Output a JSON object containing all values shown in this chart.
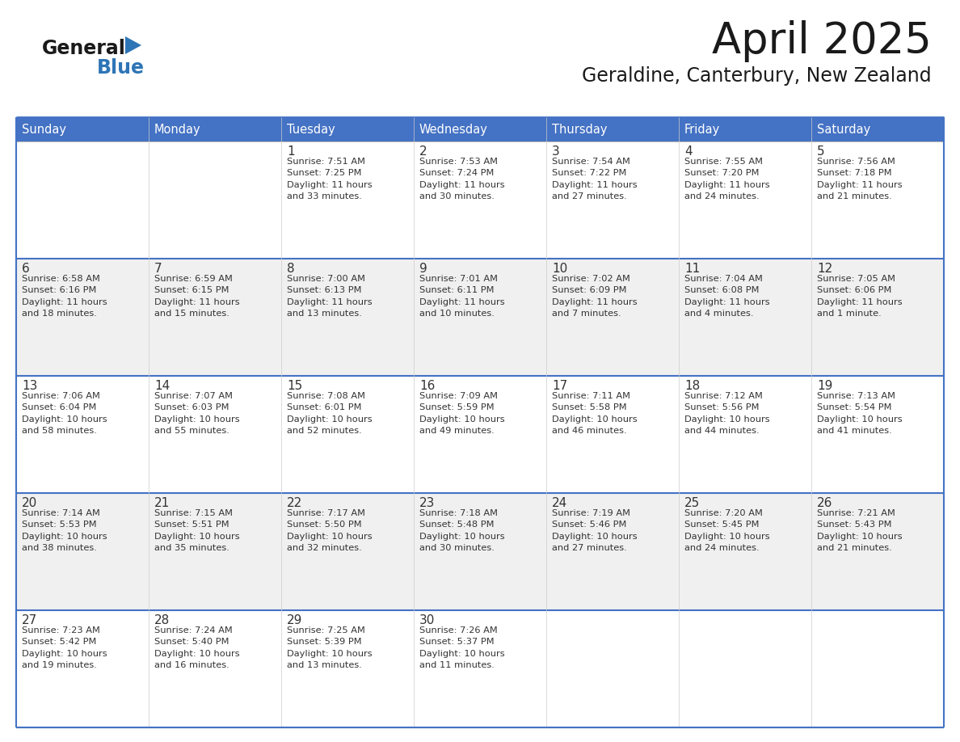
{
  "title": "April 2025",
  "subtitle": "Geraldine, Canterbury, New Zealand",
  "header_bg_color": "#4472C4",
  "header_text_color": "#FFFFFF",
  "border_color": "#4472C4",
  "row_sep_color": "#4472C4",
  "title_color": "#1a1a1a",
  "subtitle_color": "#1a1a1a",
  "text_color": "#333333",
  "days_of_week": [
    "Sunday",
    "Monday",
    "Tuesday",
    "Wednesday",
    "Thursday",
    "Friday",
    "Saturday"
  ],
  "logo_general_color": "#1a1a1a",
  "logo_blue_color": "#2E75B6",
  "logo_triangle_color": "#2E75B6",
  "row_bg_even": "#FFFFFF",
  "row_bg_odd": "#F0F0F0",
  "calendar_data": [
    [
      {
        "day": "",
        "info": ""
      },
      {
        "day": "",
        "info": ""
      },
      {
        "day": "1",
        "info": "Sunrise: 7:51 AM\nSunset: 7:25 PM\nDaylight: 11 hours\nand 33 minutes."
      },
      {
        "day": "2",
        "info": "Sunrise: 7:53 AM\nSunset: 7:24 PM\nDaylight: 11 hours\nand 30 minutes."
      },
      {
        "day": "3",
        "info": "Sunrise: 7:54 AM\nSunset: 7:22 PM\nDaylight: 11 hours\nand 27 minutes."
      },
      {
        "day": "4",
        "info": "Sunrise: 7:55 AM\nSunset: 7:20 PM\nDaylight: 11 hours\nand 24 minutes."
      },
      {
        "day": "5",
        "info": "Sunrise: 7:56 AM\nSunset: 7:18 PM\nDaylight: 11 hours\nand 21 minutes."
      }
    ],
    [
      {
        "day": "6",
        "info": "Sunrise: 6:58 AM\nSunset: 6:16 PM\nDaylight: 11 hours\nand 18 minutes."
      },
      {
        "day": "7",
        "info": "Sunrise: 6:59 AM\nSunset: 6:15 PM\nDaylight: 11 hours\nand 15 minutes."
      },
      {
        "day": "8",
        "info": "Sunrise: 7:00 AM\nSunset: 6:13 PM\nDaylight: 11 hours\nand 13 minutes."
      },
      {
        "day": "9",
        "info": "Sunrise: 7:01 AM\nSunset: 6:11 PM\nDaylight: 11 hours\nand 10 minutes."
      },
      {
        "day": "10",
        "info": "Sunrise: 7:02 AM\nSunset: 6:09 PM\nDaylight: 11 hours\nand 7 minutes."
      },
      {
        "day": "11",
        "info": "Sunrise: 7:04 AM\nSunset: 6:08 PM\nDaylight: 11 hours\nand 4 minutes."
      },
      {
        "day": "12",
        "info": "Sunrise: 7:05 AM\nSunset: 6:06 PM\nDaylight: 11 hours\nand 1 minute."
      }
    ],
    [
      {
        "day": "13",
        "info": "Sunrise: 7:06 AM\nSunset: 6:04 PM\nDaylight: 10 hours\nand 58 minutes."
      },
      {
        "day": "14",
        "info": "Sunrise: 7:07 AM\nSunset: 6:03 PM\nDaylight: 10 hours\nand 55 minutes."
      },
      {
        "day": "15",
        "info": "Sunrise: 7:08 AM\nSunset: 6:01 PM\nDaylight: 10 hours\nand 52 minutes."
      },
      {
        "day": "16",
        "info": "Sunrise: 7:09 AM\nSunset: 5:59 PM\nDaylight: 10 hours\nand 49 minutes."
      },
      {
        "day": "17",
        "info": "Sunrise: 7:11 AM\nSunset: 5:58 PM\nDaylight: 10 hours\nand 46 minutes."
      },
      {
        "day": "18",
        "info": "Sunrise: 7:12 AM\nSunset: 5:56 PM\nDaylight: 10 hours\nand 44 minutes."
      },
      {
        "day": "19",
        "info": "Sunrise: 7:13 AM\nSunset: 5:54 PM\nDaylight: 10 hours\nand 41 minutes."
      }
    ],
    [
      {
        "day": "20",
        "info": "Sunrise: 7:14 AM\nSunset: 5:53 PM\nDaylight: 10 hours\nand 38 minutes."
      },
      {
        "day": "21",
        "info": "Sunrise: 7:15 AM\nSunset: 5:51 PM\nDaylight: 10 hours\nand 35 minutes."
      },
      {
        "day": "22",
        "info": "Sunrise: 7:17 AM\nSunset: 5:50 PM\nDaylight: 10 hours\nand 32 minutes."
      },
      {
        "day": "23",
        "info": "Sunrise: 7:18 AM\nSunset: 5:48 PM\nDaylight: 10 hours\nand 30 minutes."
      },
      {
        "day": "24",
        "info": "Sunrise: 7:19 AM\nSunset: 5:46 PM\nDaylight: 10 hours\nand 27 minutes."
      },
      {
        "day": "25",
        "info": "Sunrise: 7:20 AM\nSunset: 5:45 PM\nDaylight: 10 hours\nand 24 minutes."
      },
      {
        "day": "26",
        "info": "Sunrise: 7:21 AM\nSunset: 5:43 PM\nDaylight: 10 hours\nand 21 minutes."
      }
    ],
    [
      {
        "day": "27",
        "info": "Sunrise: 7:23 AM\nSunset: 5:42 PM\nDaylight: 10 hours\nand 19 minutes."
      },
      {
        "day": "28",
        "info": "Sunrise: 7:24 AM\nSunset: 5:40 PM\nDaylight: 10 hours\nand 16 minutes."
      },
      {
        "day": "29",
        "info": "Sunrise: 7:25 AM\nSunset: 5:39 PM\nDaylight: 10 hours\nand 13 minutes."
      },
      {
        "day": "30",
        "info": "Sunrise: 7:26 AM\nSunset: 5:37 PM\nDaylight: 10 hours\nand 11 minutes."
      },
      {
        "day": "",
        "info": ""
      },
      {
        "day": "",
        "info": ""
      },
      {
        "day": "",
        "info": ""
      }
    ]
  ],
  "fig_width": 11.88,
  "fig_height": 9.18,
  "dpi": 100
}
